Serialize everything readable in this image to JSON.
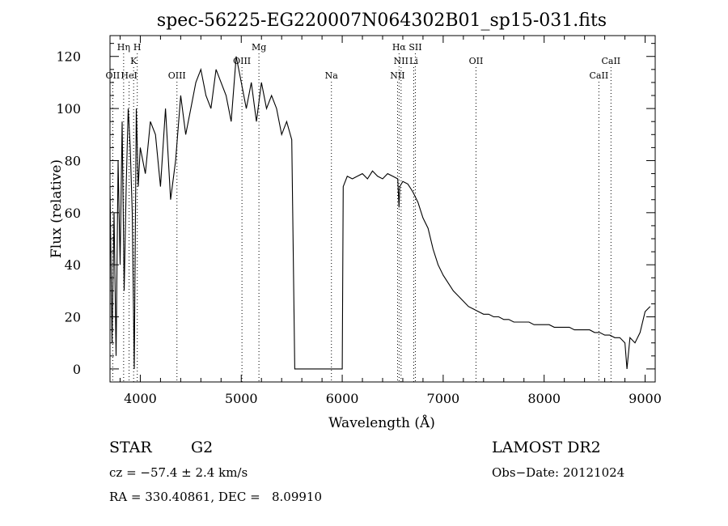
{
  "chart_data": {
    "type": "line",
    "title": "spec-56225-EG220007N064302B01_sp15-031.fits",
    "xlabel": "Wavelength (Å)",
    "ylabel": "Flux (relative)",
    "xlim": [
      3700,
      9100
    ],
    "ylim": [
      -5,
      128
    ],
    "xticks": [
      4000,
      5000,
      6000,
      7000,
      8000,
      9000
    ],
    "yticks": [
      0,
      20,
      40,
      60,
      80,
      100,
      120
    ],
    "grid": false,
    "line_color": "#000000",
    "series": [
      {
        "x": [
          3700,
          3720,
          3740,
          3760,
          3780,
          3800,
          3820,
          3840,
          3860,
          3880,
          3900,
          3920,
          3940,
          3960,
          3980,
          4000,
          4050,
          4100,
          4150,
          4200,
          4250,
          4300,
          4350,
          4400,
          4450,
          4500,
          4550,
          4600,
          4650,
          4700,
          4750,
          4800,
          4850,
          4900,
          4950,
          5000,
          5050,
          5100,
          5150,
          5200,
          5250,
          5300,
          5350,
          5400,
          5450,
          5500,
          5530,
          5540,
          5600,
          5700,
          5800,
          5900,
          5990,
          6000,
          6010,
          6050,
          6100,
          6150,
          6200,
          6250,
          6300,
          6350,
          6400,
          6450,
          6500,
          6550,
          6563,
          6570,
          6600,
          6650,
          6700,
          6750,
          6800,
          6850,
          6900,
          6950,
          7000,
          7050,
          7100,
          7150,
          7200,
          7250,
          7300,
          7350,
          7400,
          7450,
          7500,
          7550,
          7600,
          7650,
          7700,
          7750,
          7800,
          7850,
          7900,
          7950,
          8000,
          8050,
          8100,
          8150,
          8200,
          8250,
          8300,
          8350,
          8400,
          8450,
          8500,
          8550,
          8600,
          8650,
          8700,
          8750,
          8800,
          8820,
          8850,
          8900,
          8950,
          9000,
          9050
        ],
        "y": [
          70,
          10,
          60,
          5,
          80,
          40,
          95,
          30,
          70,
          100,
          85,
          60,
          0,
          100,
          70,
          85,
          75,
          95,
          90,
          70,
          100,
          65,
          80,
          105,
          90,
          100,
          110,
          115,
          105,
          100,
          115,
          110,
          105,
          95,
          120,
          110,
          100,
          110,
          95,
          110,
          100,
          105,
          100,
          90,
          95,
          88,
          0,
          0,
          0,
          0,
          0,
          0,
          0,
          0,
          70,
          74,
          73,
          74,
          75,
          73,
          76,
          74,
          73,
          75,
          74,
          73,
          62,
          70,
          72,
          71,
          68,
          64,
          58,
          54,
          46,
          40,
          36,
          33,
          30,
          28,
          26,
          24,
          23,
          22,
          21,
          21,
          20,
          20,
          19,
          19,
          18,
          18,
          18,
          18,
          17,
          17,
          17,
          17,
          16,
          16,
          16,
          16,
          15,
          15,
          15,
          15,
          14,
          14,
          13,
          13,
          12,
          12,
          10,
          0,
          12,
          10,
          14,
          22,
          24
        ]
      }
    ],
    "line_markers": [
      {
        "label": "OII",
        "x": 3727,
        "row": 3
      },
      {
        "label": "Hη",
        "x": 3835,
        "row": 1
      },
      {
        "label": "H",
        "x": 3970,
        "row": 1
      },
      {
        "label": "K",
        "x": 3934,
        "row": 2
      },
      {
        "label": "HeI",
        "x": 3889,
        "row": 3
      },
      {
        "label": "OIII",
        "x": 4363,
        "row": 3
      },
      {
        "label": "Mg",
        "x": 5175,
        "row": 1
      },
      {
        "label": "OIII",
        "x": 5007,
        "row": 2
      },
      {
        "label": "Na",
        "x": 5893,
        "row": 3
      },
      {
        "label": "Hα",
        "x": 6563,
        "row": 1
      },
      {
        "label": "NII",
        "x": 6583,
        "row": 2
      },
      {
        "label": "Li",
        "x": 6708,
        "row": 2
      },
      {
        "label": "NII",
        "x": 6548,
        "row": 3
      },
      {
        "label": "OII",
        "x": 7325,
        "row": 2
      },
      {
        "label": "SII",
        "x": 6724,
        "row": 1
      },
      {
        "label": "CaII",
        "x": 8662,
        "row": 2
      },
      {
        "label": "CaII",
        "x": 8542,
        "row": 3
      }
    ]
  },
  "info": {
    "object_class": "STAR",
    "subclass": "G2",
    "survey": "LAMOST DR2",
    "cz": "cz = −57.4 ± 2.4 km/s",
    "obs_date": "Obs−Date: 20121024",
    "coords": "RA = 330.40861, DEC =   8.09910"
  }
}
